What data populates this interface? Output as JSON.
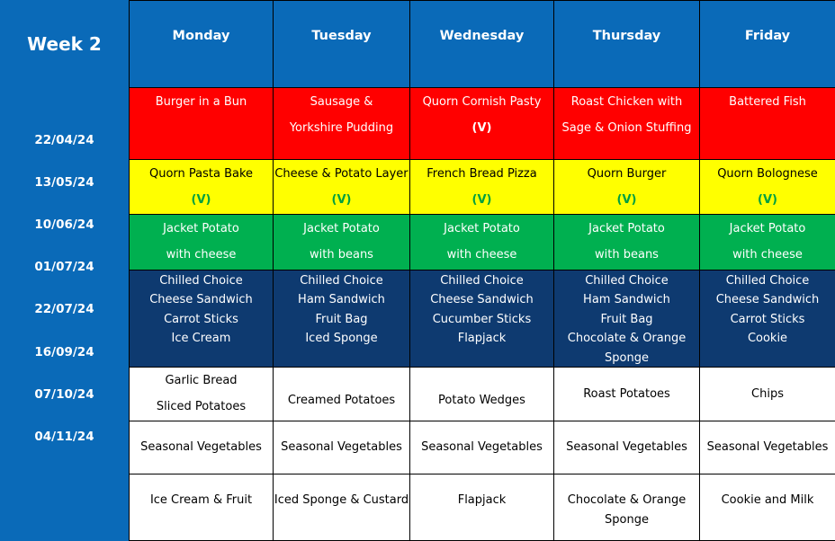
{
  "week": "Week 2",
  "dates": [
    "22/04/24",
    "13/05/24",
    "10/06/24",
    "01/07/24",
    "22/07/24",
    "16/09/24",
    "07/10/24",
    "04/11/24"
  ],
  "days": [
    "Monday",
    "Tuesday",
    "Wednesday",
    "Thursday",
    "Friday"
  ],
  "main": [
    [
      "Burger in a Bun"
    ],
    [
      "Sausage &",
      "Yorkshire Pudding"
    ],
    [
      "Quorn Cornish Pasty",
      "(V)"
    ],
    [
      "Roast Chicken with",
      "Sage & Onion Stuffing"
    ],
    [
      "Battered Fish"
    ]
  ],
  "vegetarian": [
    [
      "Quorn Pasta Bake",
      "(V)"
    ],
    [
      "Cheese & Potato Layer",
      "(V)"
    ],
    [
      "French Bread Pizza",
      "(V)"
    ],
    [
      "Quorn Burger",
      "(V)"
    ],
    [
      "Quorn Bolognese",
      "(V)"
    ]
  ],
  "jacket": [
    [
      "Jacket Potato",
      "with cheese"
    ],
    [
      "Jacket Potato",
      "with beans"
    ],
    [
      "Jacket Potato",
      "with cheese"
    ],
    [
      "Jacket Potato",
      "with beans"
    ],
    [
      "Jacket Potato",
      "with cheese"
    ]
  ],
  "chilled": [
    [
      "Chilled Choice",
      "Cheese Sandwich",
      "Carrot Sticks",
      "Ice Cream"
    ],
    [
      "Chilled Choice",
      "Ham Sandwich",
      "Fruit Bag",
      "Iced Sponge"
    ],
    [
      "Chilled Choice",
      "Cheese Sandwich",
      "Cucumber Sticks",
      "Flapjack"
    ],
    [
      "Chilled Choice",
      "Ham Sandwich",
      "Fruit Bag",
      "Chocolate & Orange",
      "Sponge"
    ],
    [
      "Chilled Choice",
      "Cheese Sandwich",
      "Carrot Sticks",
      "Cookie"
    ]
  ],
  "sides": [
    [
      "Garlic Bread",
      "Sliced Potatoes"
    ],
    [
      "Creamed Potatoes"
    ],
    [
      "Potato Wedges"
    ],
    [
      "Roast Potatoes"
    ],
    [
      "Chips"
    ]
  ],
  "vegetables": [
    [
      "Seasonal Vegetables"
    ],
    [
      "Seasonal Vegetables"
    ],
    [
      "Seasonal Vegetables"
    ],
    [
      "Seasonal Vegetables"
    ],
    [
      "Seasonal Vegetables"
    ]
  ],
  "desserts": [
    [
      "Ice Cream & Fruit"
    ],
    [
      "Iced Sponge & Custard"
    ],
    [
      "Flapjack"
    ],
    [
      "Chocolate & Orange",
      "Sponge"
    ],
    [
      "Cookie and Milk"
    ]
  ]
}
